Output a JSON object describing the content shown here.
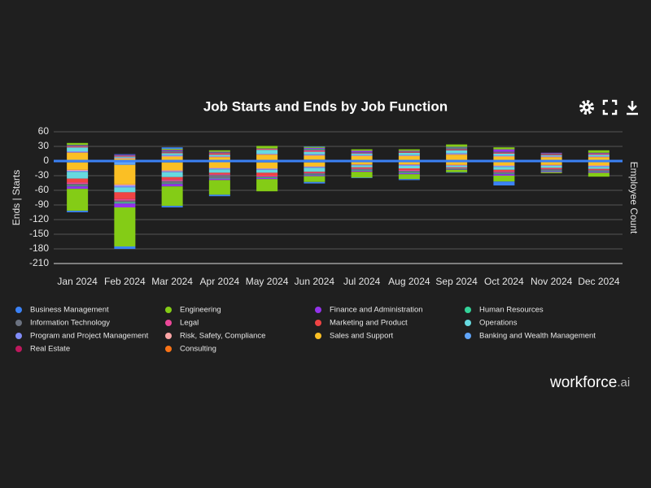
{
  "chart_data": {
    "type": "bar",
    "stacked": true,
    "title": "Job Starts and Ends by Job Function",
    "y_axis_label": "Ends | Starts",
    "y2_axis_label": "Employee Count",
    "categories": [
      "Jan 2024",
      "Feb 2024",
      "Mar 2024",
      "Apr 2024",
      "May 2024",
      "Jun 2024",
      "Jul 2024",
      "Aug 2024",
      "Sep 2024",
      "Oct 2024",
      "Nov 2024",
      "Dec 2024"
    ],
    "ylim": [
      -210,
      60
    ],
    "yticks": [
      60,
      30,
      0,
      -30,
      -60,
      -90,
      -120,
      -150,
      -180,
      -210
    ],
    "grid": true,
    "series": [
      {
        "name": "Business Management",
        "color": "#3b82f6",
        "starts": [
          0,
          1,
          3,
          0,
          0,
          1,
          0,
          0,
          0,
          0,
          0,
          0
        ],
        "ends": [
          -3,
          -5,
          -3,
          -3,
          0,
          -3,
          -1,
          -2,
          -1,
          -8,
          0,
          0
        ]
      },
      {
        "name": "Engineering",
        "color": "#84cc16",
        "starts": [
          4,
          0,
          2,
          3,
          5,
          2,
          3,
          3,
          5,
          4,
          0,
          5
        ],
        "ends": [
          -45,
          -80,
          -40,
          -30,
          -25,
          -12,
          -12,
          -10,
          -5,
          -12,
          -2,
          -8
        ]
      },
      {
        "name": "Finance and Administration",
        "color": "#9333ea",
        "starts": [
          1,
          1,
          2,
          1,
          0,
          2,
          3,
          1,
          1,
          5,
          1,
          1
        ],
        "ends": [
          -5,
          -8,
          -5,
          -3,
          -2,
          -2,
          -2,
          -2,
          -1,
          -3,
          -2,
          -2
        ]
      },
      {
        "name": "Human Resources",
        "color": "#34d399",
        "starts": [
          0,
          0,
          0,
          0,
          0,
          1,
          0,
          0,
          1,
          0,
          0,
          0
        ],
        "ends": [
          -1,
          -2,
          -1,
          -1,
          -1,
          -1,
          -1,
          -1,
          -1,
          -1,
          -1,
          -1
        ]
      },
      {
        "name": "Information Technology",
        "color": "#6b7280",
        "starts": [
          2,
          1,
          3,
          2,
          1,
          2,
          2,
          1,
          3,
          2,
          2,
          1
        ],
        "ends": [
          -4,
          -4,
          -5,
          -6,
          -2,
          -3,
          -3,
          -4,
          -1,
          -3,
          -3,
          -2
        ]
      },
      {
        "name": "Legal",
        "color": "#ec4899",
        "starts": [
          1,
          1,
          1,
          1,
          1,
          2,
          1,
          1,
          1,
          1,
          1,
          1
        ],
        "ends": [
          -3,
          -3,
          -3,
          -2,
          -2,
          -1,
          -1,
          -2,
          -1,
          -2,
          -1,
          -1
        ]
      },
      {
        "name": "Marketing and Product",
        "color": "#ef4444",
        "starts": [
          1,
          1,
          1,
          2,
          1,
          1,
          0,
          1,
          1,
          1,
          1,
          1
        ],
        "ends": [
          -8,
          -14,
          -5,
          -3,
          -6,
          -2,
          -2,
          -3,
          -1,
          -3,
          -2,
          -2
        ]
      },
      {
        "name": "Operations",
        "color": "#67d9e0",
        "starts": [
          8,
          2,
          4,
          3,
          8,
          5,
          3,
          5,
          6,
          4,
          2,
          3
        ],
        "ends": [
          -14,
          -10,
          -10,
          -7,
          -6,
          -8,
          -4,
          -5,
          -3,
          -6,
          -4,
          -4
        ]
      },
      {
        "name": "Program and Project Management",
        "color": "#818cf8",
        "starts": [
          2,
          1,
          2,
          1,
          1,
          2,
          1,
          1,
          2,
          1,
          1,
          1
        ],
        "ends": [
          -2,
          -4,
          -2,
          -2,
          -2,
          -2,
          -1,
          -2,
          -1,
          -2,
          -1,
          -2
        ]
      },
      {
        "name": "Risk, Safety, Compliance",
        "color": "#fca5a5",
        "starts": [
          1,
          1,
          1,
          1,
          1,
          1,
          1,
          1,
          1,
          1,
          1,
          1
        ],
        "ends": [
          -2,
          -2,
          -2,
          -1,
          -1,
          -1,
          -1,
          -1,
          -1,
          -1,
          -1,
          -1
        ]
      },
      {
        "name": "Sales and Support",
        "color": "#fbbf24",
        "starts": [
          15,
          4,
          8,
          7,
          11,
          8,
          9,
          9,
          12,
          8,
          7,
          7
        ],
        "ends": [
          -15,
          -40,
          -16,
          -12,
          -12,
          -8,
          -6,
          -6,
          -7,
          -8,
          -7,
          -8
        ]
      },
      {
        "name": "Banking and Wealth Management",
        "color": "#60a5fa",
        "starts": [
          2,
          1,
          1,
          1,
          2,
          3,
          1,
          1,
          1,
          1,
          1,
          1
        ],
        "ends": [
          -3,
          -8,
          -3,
          -2,
          -3,
          -3,
          -1,
          -1,
          -1,
          -1,
          -1,
          -1
        ]
      },
      {
        "name": "Real Estate",
        "color": "#be185d",
        "starts": [
          0,
          0,
          0,
          0,
          0,
          0,
          0,
          0,
          0,
          0,
          0,
          0
        ],
        "ends": [
          0,
          0,
          0,
          0,
          0,
          0,
          0,
          0,
          0,
          0,
          0,
          0
        ]
      },
      {
        "name": "Consulting",
        "color": "#f97316",
        "starts": [
          0,
          0,
          0,
          0,
          0,
          0,
          0,
          0,
          0,
          0,
          0,
          0
        ],
        "ends": [
          0,
          0,
          0,
          0,
          0,
          0,
          0,
          0,
          0,
          0,
          0,
          0
        ]
      }
    ]
  },
  "brand": {
    "name": "workforce",
    "suffix": ".ai"
  }
}
